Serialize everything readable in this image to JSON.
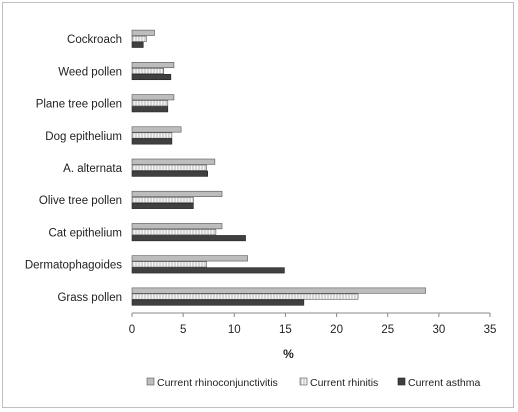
{
  "chart_data": {
    "type": "bar",
    "orientation": "horizontal",
    "categories": [
      "Cockroach",
      "Weed pollen",
      "Plane tree pollen",
      "Dog epithelium",
      "A. alternata",
      "Olive tree pollen",
      "Cat epithelium",
      "Dermatophagoides",
      "Grass pollen"
    ],
    "series": [
      {
        "name": "Current rhinoconjunctivitis",
        "color": "#bdbdbd",
        "pattern": "solid-light",
        "values": [
          2.2,
          4.1,
          4.1,
          4.8,
          8.1,
          8.8,
          8.8,
          11.3,
          28.7
        ]
      },
      {
        "name": "Current rhinitis",
        "color": "#f2f2f2",
        "pattern": "vertical-stripes",
        "values": [
          1.4,
          3.1,
          3.5,
          3.9,
          7.3,
          6.0,
          8.2,
          7.3,
          22.1
        ]
      },
      {
        "name": "Current asthma",
        "color": "#404040",
        "pattern": "solid-dark",
        "values": [
          1.1,
          3.8,
          3.5,
          3.9,
          7.4,
          6.0,
          11.1,
          14.9,
          16.8
        ]
      }
    ],
    "xlabel": "%",
    "ylabel": "",
    "title": "",
    "xlim": [
      0,
      35
    ],
    "xticks": [
      0,
      5,
      10,
      15,
      20,
      25,
      30,
      35
    ],
    "grid": false,
    "legend_position": "bottom"
  }
}
